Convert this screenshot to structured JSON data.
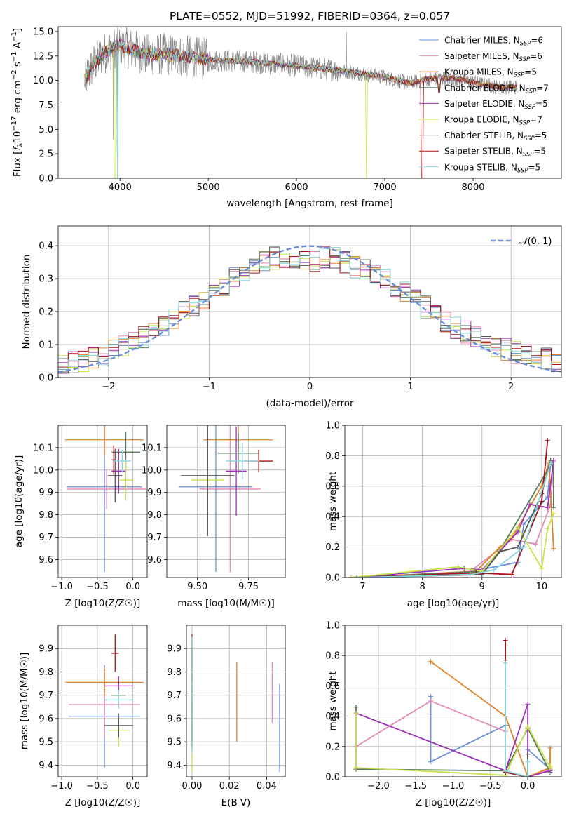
{
  "chart_data": [
    {
      "type": "line",
      "id": "spectrum",
      "title": "PLATE=0552, MJD=51992, FIBERID=0364, z=0.057",
      "xlabel": "wavelength [Angstrom, rest frame]",
      "ylabel": "Flux [f_λ 10^-17 erg cm^-2 s^-1 A^-1]",
      "xlim": [
        3300,
        9000
      ],
      "ylim": [
        0,
        15.5
      ],
      "xticks": [
        4000,
        5000,
        6000,
        7000,
        8000
      ],
      "yticks": [
        0.0,
        2.5,
        5.0,
        7.5,
        10.0,
        12.5,
        15.0
      ],
      "grid": false,
      "legend_position": "top-right",
      "data_wavelength_range": [
        3600,
        8500
      ],
      "continuum": {
        "x": [
          3600,
          3700,
          3800,
          3900,
          4000,
          4100,
          4300,
          4500,
          4800,
          5000,
          5500,
          6000,
          6500,
          6900,
          7100,
          7300,
          7500,
          7800,
          8100,
          8300,
          8500
        ],
        "y": [
          10.0,
          11.6,
          12.6,
          13.2,
          13.6,
          13.3,
          12.6,
          12.7,
          12.4,
          12.1,
          11.9,
          11.5,
          11.0,
          10.5,
          10.1,
          9.7,
          10.2,
          10.2,
          9.6,
          9.3,
          9.3
        ]
      },
      "series": [
        {
          "legend_main": "Chabrier MILES, N",
          "legend_sub": "SSP",
          "legend_val": "=6",
          "color": "#6a8fd8"
        },
        {
          "legend_main": "Salpeter MILES, N",
          "legend_sub": "SSP",
          "legend_val": "=6",
          "color": "#e58bb7"
        },
        {
          "legend_main": "Kroupa MILES, N",
          "legend_sub": "SSP",
          "legend_val": "=5",
          "color": "#e2822a"
        },
        {
          "legend_main": "Chabrier ELODIE, N",
          "legend_sub": "SSP",
          "legend_val": "=7",
          "color": "#567a5b"
        },
        {
          "legend_main": "Salpeter ELODIE, N",
          "legend_sub": "SSP",
          "legend_val": "=5",
          "color": "#9a33b4"
        },
        {
          "legend_main": "Kroupa ELODIE, N",
          "legend_sub": "SSP",
          "legend_val": "=7",
          "color": "#c8e04a"
        },
        {
          "legend_main": "Chabrier STELIB, N",
          "legend_sub": "SSP",
          "legend_val": "=5",
          "color": "#555555"
        },
        {
          "legend_main": "Salpeter STELIB, N",
          "legend_sub": "SSP",
          "legend_val": "=5",
          "color": "#a31515"
        },
        {
          "legend_main": "Kroupa STELIB, N",
          "legend_sub": "SSP",
          "legend_val": "=5",
          "color": "#86d7dd"
        }
      ]
    },
    {
      "type": "histogram",
      "id": "residuals",
      "xlabel": "(data-model)/error",
      "ylabel": "Normed distribution",
      "xlim": [
        -2.5,
        2.5
      ],
      "ylim": [
        0,
        0.46
      ],
      "xticks": [
        -2,
        -1,
        0,
        1,
        2
      ],
      "yticks": [
        0.0,
        0.1,
        0.2,
        0.3,
        0.4
      ],
      "grid": true,
      "legend": [
        {
          "label": "N(0,1)",
          "color": "#6a8fd8",
          "style": "dashed"
        }
      ],
      "legend_position": "top-right",
      "bin_edges_start": -2.5,
      "bin_width": 0.1,
      "bin_count": 50,
      "reference_curve": "normal(0,1)",
      "profile_x": [
        -2.5,
        -2.2,
        -2.0,
        -1.8,
        -1.6,
        -1.4,
        -1.2,
        -1.0,
        -0.8,
        -0.6,
        -0.4,
        -0.2,
        0.0,
        0.2,
        0.4,
        0.6,
        0.8,
        1.0,
        1.2,
        1.4,
        1.6,
        1.8,
        2.0,
        2.2,
        2.5
      ],
      "profile_y": [
        0.04,
        0.055,
        0.075,
        0.1,
        0.13,
        0.17,
        0.21,
        0.25,
        0.29,
        0.33,
        0.36,
        0.37,
        0.35,
        0.37,
        0.34,
        0.32,
        0.29,
        0.25,
        0.2,
        0.16,
        0.13,
        0.1,
        0.08,
        0.06,
        0.05
      ]
    },
    {
      "type": "errorbar",
      "id": "age_vs_Z",
      "xlabel": "Z [log10(Z/Z☉)]",
      "ylabel": "age  [log10(age/yr)]",
      "xlim": [
        -1.05,
        0.2
      ],
      "ylim": [
        9.52,
        10.2
      ],
      "xticks": [
        -1.0,
        -0.5,
        0.0
      ],
      "xticklabels": [
        "−1.0",
        "−0.5",
        "0.0"
      ],
      "yticks": [
        9.6,
        9.7,
        9.8,
        9.9,
        10.0,
        10.1
      ],
      "yticklabels": [
        "9.6",
        "9.7",
        "9.8",
        "9.9",
        "10.0",
        "10.1"
      ],
      "grid": true,
      "points": [
        {
          "x": -0.4,
          "xerr": 0.53,
          "y": 9.925,
          "yerr": 0.38,
          "color": "#6a8fd8"
        },
        {
          "x": -0.37,
          "xerr": 0.55,
          "y": 9.915,
          "yerr": 0.09,
          "color": "#e58bb7"
        },
        {
          "x": -0.4,
          "xerr": 0.55,
          "y": 10.135,
          "yerr": 0.07,
          "color": "#e2822a"
        },
        {
          "x": -0.1,
          "xerr": 0.2,
          "y": 10.08,
          "yerr": 0.09,
          "color": "#567a5b"
        },
        {
          "x": -0.2,
          "xerr": 0.1,
          "y": 9.995,
          "yerr": 0.1,
          "color": "#9a33b4"
        },
        {
          "x": -0.1,
          "xerr": 0.1,
          "y": 9.955,
          "yerr": 0.09,
          "color": "#c8e04a"
        },
        {
          "x": -0.25,
          "xerr": 0.1,
          "y": 9.975,
          "yerr": 0.12,
          "color": "#555555"
        },
        {
          "x": -0.27,
          "xerr": 0.03,
          "y": 10.045,
          "yerr": 0.065,
          "color": "#a31515"
        },
        {
          "x": -0.15,
          "xerr": 0.12,
          "y": 10.04,
          "yerr": 0.05,
          "color": "#86d7dd"
        }
      ]
    },
    {
      "type": "errorbar",
      "id": "age_vs_mass",
      "xlabel": "mass [log10(M/M☉)]",
      "ylabel": "",
      "xlim": [
        9.35,
        9.93
      ],
      "ylim": [
        9.52,
        10.2
      ],
      "xticks": [
        9.5,
        9.75
      ],
      "xticklabels": [
        "9.50",
        "9.75"
      ],
      "yticks": [
        9.6,
        9.7,
        9.8,
        9.9,
        10.0,
        10.1
      ],
      "yticklabels": [
        "9.6",
        "9.7",
        "9.8",
        "9.9",
        "10.0",
        "10.1"
      ],
      "grid": true,
      "points": [
        {
          "x": 9.59,
          "xerr": 0.18,
          "y": 9.925,
          "yerr": 0.38,
          "color": "#6a8fd8"
        },
        {
          "x": 9.66,
          "xerr": 0.15,
          "y": 9.915,
          "yerr": 0.37,
          "color": "#e58bb7"
        },
        {
          "x": 9.7,
          "xerr": 0.17,
          "y": 10.135,
          "yerr": 0.07,
          "color": "#e2822a"
        },
        {
          "x": 9.7,
          "xerr": 0.1,
          "y": 10.075,
          "yerr": 0.09,
          "color": "#567a5b"
        },
        {
          "x": 9.69,
          "xerr": 0.05,
          "y": 9.995,
          "yerr": 0.2,
          "color": "#9a33b4"
        },
        {
          "x": 9.55,
          "xerr": 0.08,
          "y": 9.955,
          "yerr": 0.21,
          "color": "#c8e04a"
        },
        {
          "x": 9.55,
          "xerr": 0.13,
          "y": 9.975,
          "yerr": 0.27,
          "color": "#555555"
        },
        {
          "x": 9.8,
          "xerr": 0.07,
          "y": 10.04,
          "yerr": 0.05,
          "color": "#a31515"
        },
        {
          "x": 9.72,
          "xerr": 0.08,
          "y": 10.04,
          "yerr": 0.08,
          "color": "#86d7dd"
        }
      ]
    },
    {
      "type": "line",
      "id": "weight_vs_age",
      "xlabel": "age  [log10(age/yr)]",
      "ylabel": "mass weight",
      "xlim": [
        6.7,
        10.33
      ],
      "ylim": [
        0,
        1.0
      ],
      "xticks": [
        7,
        8,
        9,
        10
      ],
      "xticklabels": [
        "7",
        "8",
        "9",
        "10"
      ],
      "yticks": [
        0.0,
        0.2,
        0.4,
        0.6,
        0.8,
        1.0
      ],
      "yticklabels": [
        "0.0",
        "0.2",
        "0.4",
        "0.6",
        "0.8",
        "1.0"
      ],
      "grid": true,
      "series": [
        {
          "color": "#6a8fd8",
          "x": [
            6.8,
            8.7,
            9.6,
            9.7,
            10.1,
            10.15
          ],
          "y": [
            0.0,
            0.03,
            0.1,
            0.35,
            0.53,
            0.75
          ]
        },
        {
          "color": "#e58bb7",
          "x": [
            6.9,
            8.8,
            9.5,
            9.9,
            10.15,
            10.2
          ],
          "y": [
            0.0,
            0.04,
            0.25,
            0.22,
            0.48,
            0.76
          ]
        },
        {
          "color": "#e2822a",
          "x": [
            6.8,
            8.9,
            9.3,
            9.5,
            10.0,
            10.12,
            10.2
          ],
          "y": [
            0.0,
            0.04,
            0.2,
            0.26,
            0.6,
            0.75,
            0.19
          ]
        },
        {
          "color": "#567a5b",
          "x": [
            6.9,
            9.0,
            9.3,
            10.2,
            10.2
          ],
          "y": [
            0.0,
            0.04,
            0.18,
            0.77,
            0.46
          ]
        },
        {
          "color": "#9a33b4",
          "x": [
            6.8,
            8.7,
            9.0,
            9.6,
            9.8,
            10.1,
            10.2
          ],
          "y": [
            0.0,
            0.06,
            0.05,
            0.3,
            0.48,
            0.46,
            0.77
          ]
        },
        {
          "color": "#c8e04a",
          "x": [
            6.8,
            8.6,
            9.0,
            9.6,
            10.0,
            10.1,
            10.2
          ],
          "y": [
            0.0,
            0.07,
            0.04,
            0.33,
            0.06,
            0.32,
            0.42
          ]
        },
        {
          "color": "#555555",
          "x": [
            6.9,
            9.0,
            9.3,
            9.6,
            10.0,
            10.15
          ],
          "y": [
            0.0,
            0.02,
            0.17,
            0.2,
            0.55,
            0.77
          ]
        },
        {
          "color": "#a31515",
          "x": [
            6.9,
            8.9,
            9.5,
            10.0,
            10.1
          ],
          "y": [
            0.0,
            0.03,
            0.02,
            0.5,
            0.9
          ]
        },
        {
          "color": "#86d7dd",
          "x": [
            6.9,
            8.8,
            9.2,
            9.7,
            10.15
          ],
          "y": [
            0.0,
            0.02,
            0.05,
            0.2,
            0.75
          ]
        }
      ]
    },
    {
      "type": "errorbar",
      "id": "mass_vs_Z",
      "xlabel": "Z [log10(Z/Z☉)]",
      "ylabel": "mass [log10(M/M☉)]",
      "xlim": [
        -1.05,
        0.2
      ],
      "ylim": [
        9.35,
        10.0
      ],
      "xticks": [
        -1.0,
        -0.5,
        0.0
      ],
      "xticklabels": [
        "−1.0",
        "−0.5",
        "0.0"
      ],
      "yticks": [
        9.4,
        9.5,
        9.6,
        9.7,
        9.8,
        9.9
      ],
      "yticklabels": [
        "9.4",
        "9.5",
        "9.6",
        "9.7",
        "9.8",
        "9.9"
      ],
      "grid": true,
      "points": [
        {
          "x": -0.4,
          "xerr": 0.5,
          "y": 9.61,
          "yerr": 0.22,
          "color": "#6a8fd8"
        },
        {
          "x": -0.4,
          "xerr": 0.5,
          "y": 9.66,
          "yerr": 0.14,
          "color": "#e58bb7"
        },
        {
          "x": -0.4,
          "xerr": 0.55,
          "y": 9.755,
          "yerr": 0.06,
          "color": "#e2822a"
        },
        {
          "x": -0.2,
          "xerr": 0.1,
          "y": 9.7,
          "yerr": 0.06,
          "color": "#567a5b"
        },
        {
          "x": -0.2,
          "xerr": 0.2,
          "y": 9.74,
          "yerr": 0.04,
          "color": "#9a33b4"
        },
        {
          "x": -0.2,
          "xerr": 0.15,
          "y": 9.55,
          "yerr": 0.07,
          "color": "#c8e04a"
        },
        {
          "x": -0.2,
          "xerr": 0.2,
          "y": 9.57,
          "yerr": 0.05,
          "color": "#555555"
        },
        {
          "x": -0.25,
          "xerr": 0.05,
          "y": 9.88,
          "yerr": 0.08,
          "color": "#a31515"
        },
        {
          "x": -0.2,
          "xerr": 0.2,
          "y": 9.68,
          "yerr": 0.04,
          "color": "#86d7dd"
        }
      ]
    },
    {
      "type": "errorbar",
      "id": "mass_vs_ebv",
      "xlabel": "E(B-V)",
      "ylabel": "",
      "xlim": [
        -0.003,
        0.05
      ],
      "ylim": [
        9.35,
        10.0
      ],
      "xticks": [
        0.0,
        0.02,
        0.04
      ],
      "xticklabels": [
        "0.00",
        "0.02",
        "0.04"
      ],
      "yticks": [
        9.4,
        9.5,
        9.6,
        9.7,
        9.8,
        9.9
      ],
      "yticklabels": [
        "9.4",
        "9.5",
        "9.6",
        "9.7",
        "9.8",
        "9.9"
      ],
      "grid": true,
      "points": [
        {
          "x": 0.047,
          "y": 9.56,
          "yerr": 0.19,
          "color": "#6a8fd8"
        },
        {
          "x": 0.043,
          "y": 9.71,
          "yerr": 0.13,
          "color": "#e58bb7"
        },
        {
          "x": 0.024,
          "y": 9.67,
          "yerr": 0.17,
          "color": "#e2822a"
        },
        {
          "x": 0.0,
          "y": 9.58,
          "yerr": 0.1,
          "color": "#567a5b"
        },
        {
          "x": 0.0,
          "y": 9.62,
          "yerr": 0.15,
          "color": "#9a33b4"
        },
        {
          "x": 0.0,
          "y": 9.65,
          "yerr": 0.28,
          "color": "#c8e04a"
        },
        {
          "x": 0.0,
          "y": 9.7,
          "yerr": 0.2,
          "color": "#555555"
        },
        {
          "x": 0.0,
          "y": 9.86,
          "yerr": 0.1,
          "color": "#a31515"
        },
        {
          "x": 0.0,
          "y": 9.7,
          "yerr": 0.25,
          "color": "#86d7dd"
        }
      ]
    },
    {
      "type": "line",
      "id": "weight_vs_Z",
      "xlabel": "Z [log10(Z/Z☉)]",
      "ylabel": "mass weight",
      "xlim": [
        -2.45,
        0.45
      ],
      "ylim": [
        0,
        1.0
      ],
      "xticks": [
        -2.0,
        -1.5,
        -1.0,
        -0.5,
        0.0
      ],
      "xticklabels": [
        "−2.0",
        "−1.5",
        "−1.0",
        "−0.5",
        "0.0"
      ],
      "yticks": [
        0.0,
        0.2,
        0.4,
        0.6,
        0.8,
        1.0
      ],
      "yticklabels": [
        "0.0",
        "0.2",
        "0.4",
        "0.6",
        "0.8",
        "1.0"
      ],
      "grid": true,
      "series": [
        {
          "color": "#6a8fd8",
          "x": [
            -1.3,
            -1.3,
            -0.3,
            -0.3,
            0.0,
            0.0,
            0.3
          ],
          "y": [
            0.53,
            0.1,
            0.34,
            0.03,
            0.0,
            0.18,
            0.05
          ]
        },
        {
          "color": "#e58bb7",
          "x": [
            -2.3,
            -1.3,
            -0.3,
            -0.3,
            0.0,
            0.3
          ],
          "y": [
            0.2,
            0.5,
            0.3,
            0.03,
            0.0,
            0.05
          ]
        },
        {
          "color": "#e2822a",
          "x": [
            -1.3,
            -0.3,
            0.0,
            0.3,
            0.3
          ],
          "y": [
            0.76,
            0.4,
            0.0,
            0.06,
            0.19
          ]
        },
        {
          "color": "#567a5b",
          "x": [
            -2.3,
            -2.3,
            -0.3,
            0.0,
            0.3
          ],
          "y": [
            0.46,
            0.05,
            0.04,
            0.32,
            0.03
          ]
        },
        {
          "color": "#9a33b4",
          "x": [
            -2.3,
            -0.3,
            0.0,
            0.0,
            0.3
          ],
          "y": [
            0.42,
            0.04,
            0.48,
            0.0,
            0.04
          ]
        },
        {
          "color": "#c8e04a",
          "x": [
            -2.3,
            -2.3,
            -0.3,
            0.0,
            0.3,
            0.3
          ],
          "y": [
            0.42,
            0.06,
            0.01,
            0.33,
            0.06,
            0.07
          ]
        },
        {
          "color": "#555555",
          "x": [
            -0.3,
            -0.3,
            0.0,
            0.0
          ],
          "y": [
            0.77,
            0.03,
            0.0,
            0.15
          ]
        },
        {
          "color": "#a31515",
          "x": [
            -0.3,
            -0.3,
            0.0
          ],
          "y": [
            0.9,
            0.03,
            0.0
          ]
        },
        {
          "color": "#86d7dd",
          "x": [
            -0.3,
            -0.3,
            0.0,
            0.0
          ],
          "y": [
            0.75,
            0.04,
            0.0,
            0.1
          ]
        }
      ]
    }
  ]
}
